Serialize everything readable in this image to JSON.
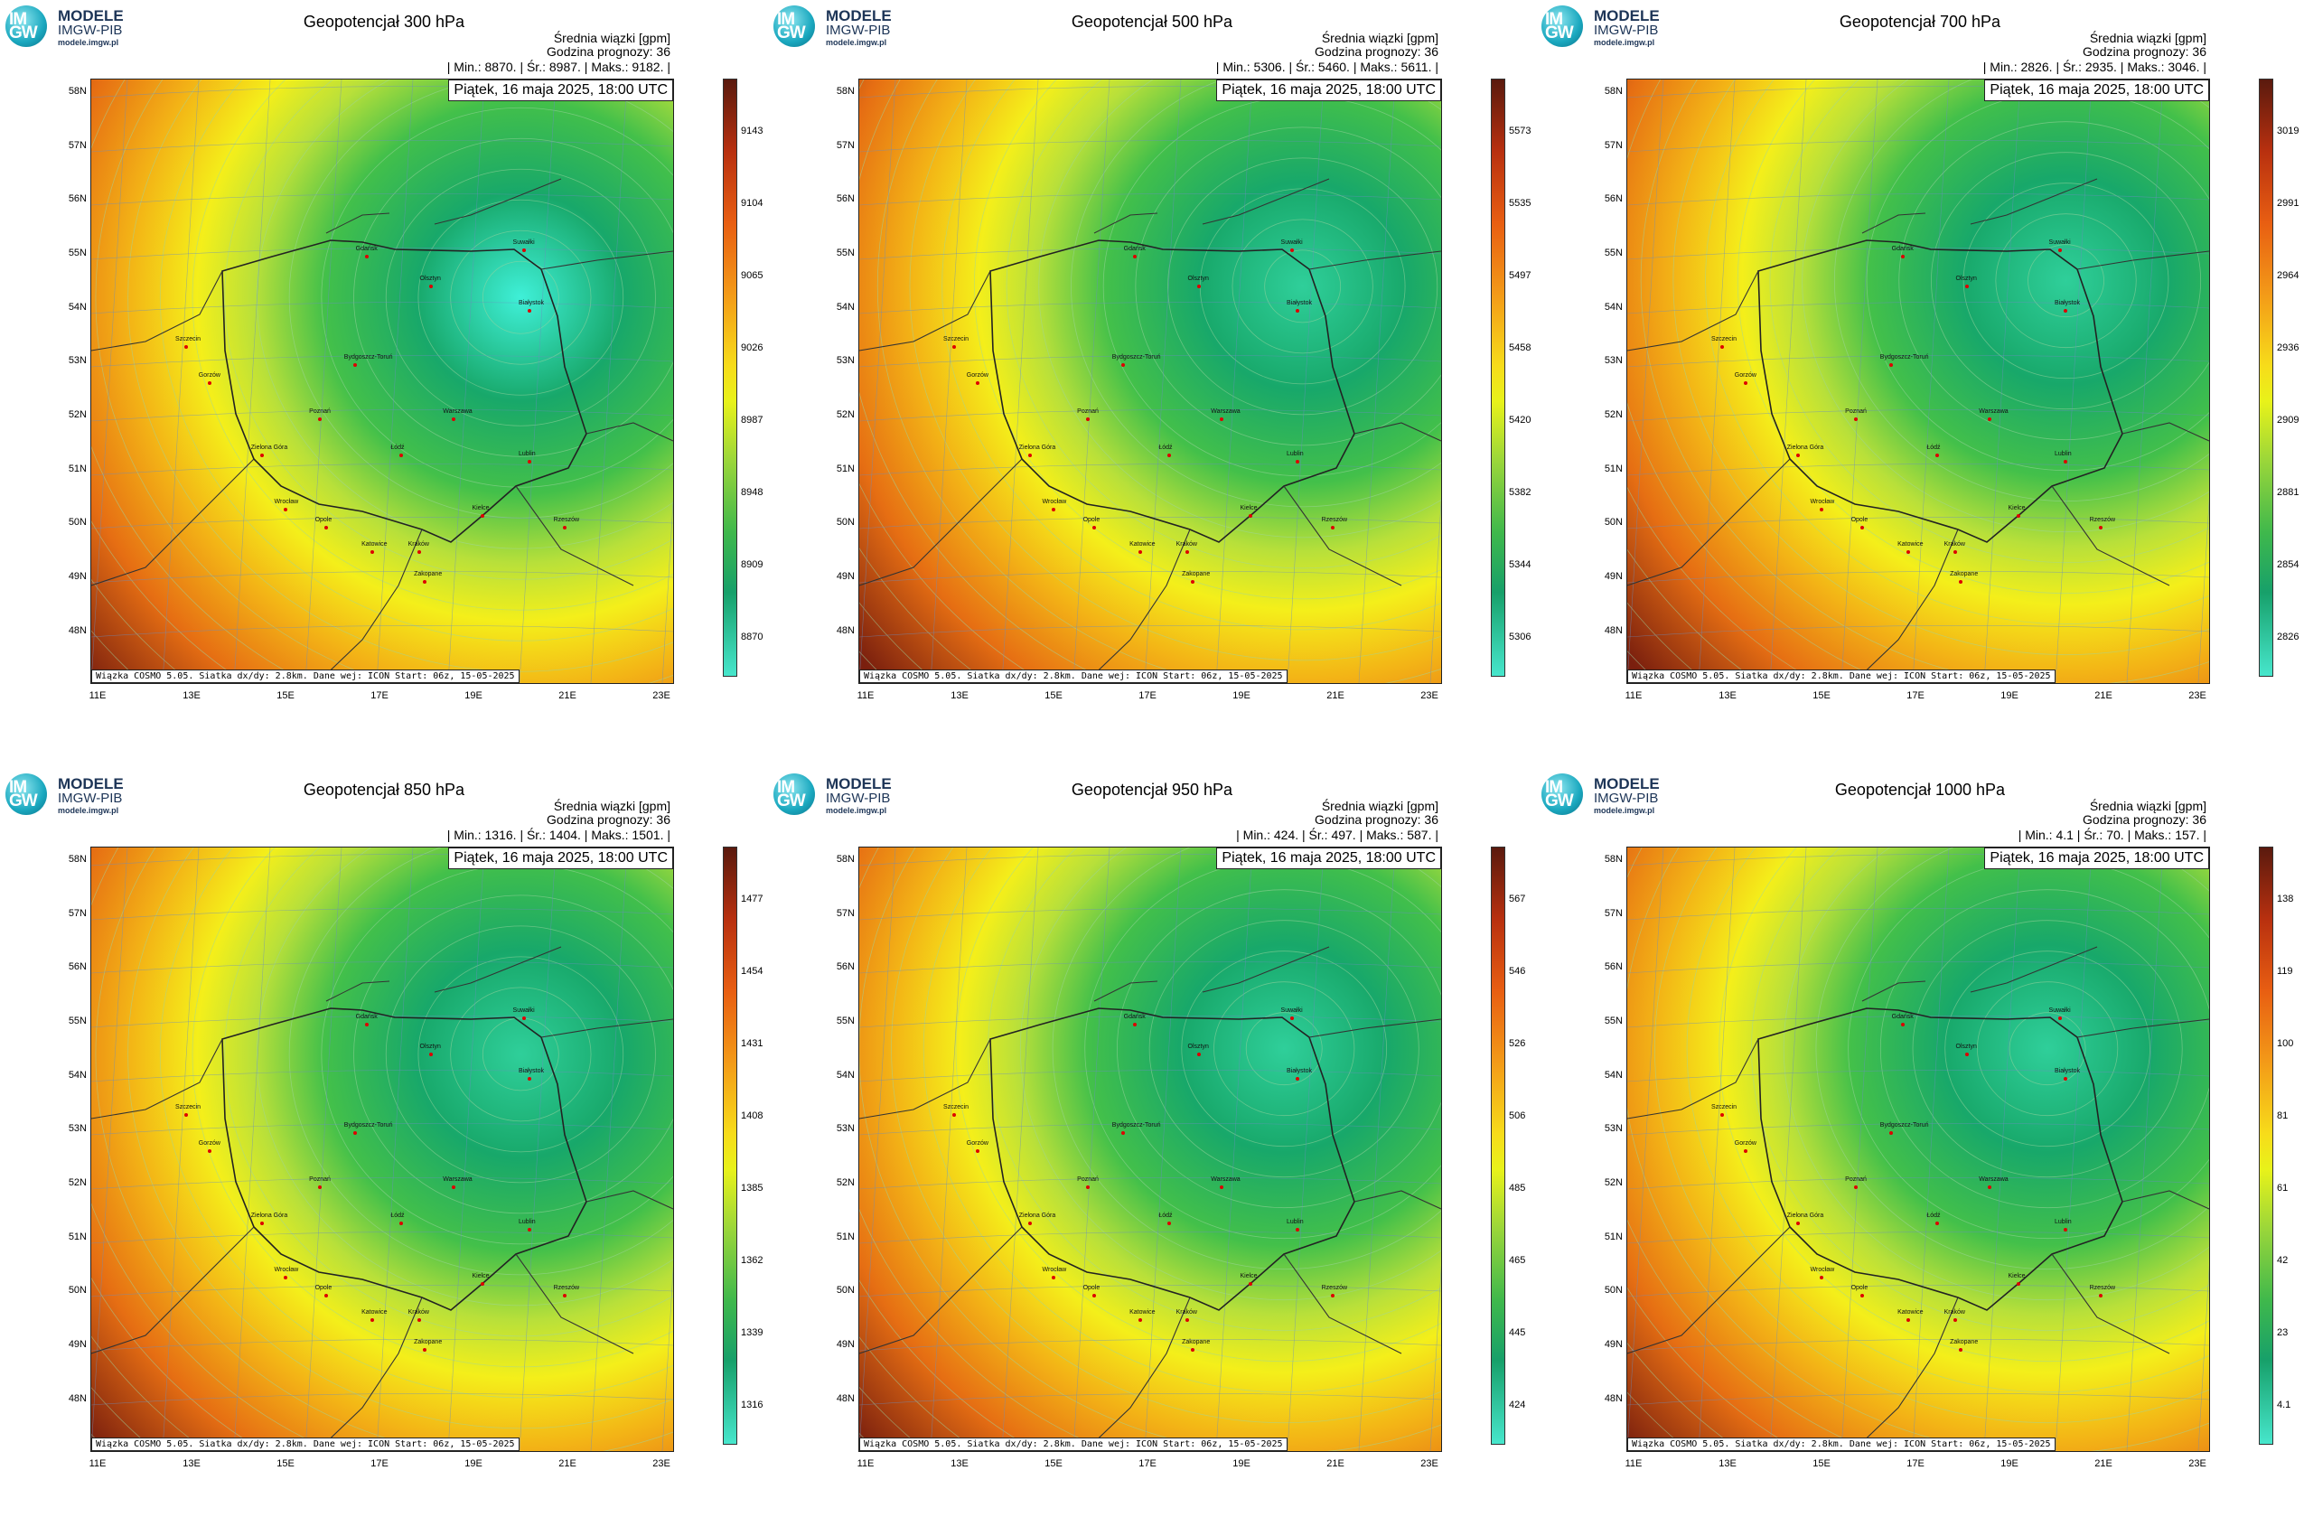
{
  "logo": {
    "badge": "IM GW",
    "title": "MODELE",
    "subtitle": "IMGW-PIB",
    "url": "modele.imgw.pl"
  },
  "common": {
    "info_line1": "Średnia wiązki [gpm]",
    "info_line2": "Godzina prognozy: 36",
    "date": "Piątek, 16 maja 2025, 18:00 UTC",
    "footnote": "Wiązka COSMO 5.05. Siatka dx/dy: 2.8km. Dane wej: ICON Start: 06z, 15-05-2025",
    "lat_labels": [
      "58N",
      "57N",
      "56N",
      "55N",
      "54N",
      "53N",
      "52N",
      "51N",
      "50N",
      "49N",
      "48N"
    ],
    "lon_labels": [
      "11E",
      "13E",
      "15E",
      "17E",
      "19E",
      "21E",
      "23E"
    ],
    "cities": [
      "Gdańsk",
      "Suwałki",
      "Olsztyn",
      "Białystok",
      "Szczecin",
      "Bydgoszcz-Toruń",
      "Gorzów",
      "Warszawa",
      "Poznań",
      "Zielona Góra",
      "Łódź",
      "Lublin",
      "Wrocław",
      "Kielce",
      "Opole",
      "Rzeszów",
      "Katowice",
      "Kraków",
      "Zakopane"
    ]
  },
  "panels": [
    {
      "title": "Geopotencjał 300 hPa",
      "stats": "| Min.:  8870. | Śr.:  8987. | Maks.:  9182. |",
      "colorbar_ticks": [
        "9143",
        "9104",
        "9065",
        "9026",
        "8987",
        "8948",
        "8909",
        "8870"
      ],
      "min": 8870,
      "mean": 8987,
      "max": 9182,
      "low_center": [
        20.3,
        54.3
      ]
    },
    {
      "title": "Geopotencjał 500 hPa",
      "stats": "| Min.:  5306. | Śr.:  5460. | Maks.:  5611. |",
      "colorbar_ticks": [
        "5573",
        "5535",
        "5497",
        "5458",
        "5420",
        "5382",
        "5344",
        "5306"
      ],
      "min": 5306,
      "mean": 5460,
      "max": 5611,
      "low_center": [
        20.6,
        54.5
      ]
    },
    {
      "title": "Geopotencjał 700 hPa",
      "stats": "| Min.:  2826. | Śr.:  2935. | Maks.:  3046. |",
      "colorbar_ticks": [
        "3019",
        "2991",
        "2964",
        "2936",
        "2909",
        "2881",
        "2854",
        "2826"
      ],
      "min": 2826,
      "mean": 2935,
      "max": 3046,
      "low_center": [
        20.5,
        54.6
      ]
    },
    {
      "title": "Geopotencjał 850 hPa",
      "stats": "| Min.:  1316. | Śr.:  1404. | Maks.:  1501. |",
      "colorbar_ticks": [
        "1477",
        "1454",
        "1431",
        "1408",
        "1385",
        "1362",
        "1339",
        "1316"
      ],
      "min": 1316,
      "mean": 1404,
      "max": 1501,
      "low_center": [
        20.3,
        54.5
      ]
    },
    {
      "title": "Geopotencjał 950 hPa",
      "stats": "| Min.:  424. | Śr.:  497. | Maks.:  587. |",
      "colorbar_ticks": [
        "567",
        "546",
        "526",
        "506",
        "485",
        "465",
        "445",
        "424"
      ],
      "min": 424,
      "mean": 497,
      "max": 587,
      "low_center": [
        20.2,
        54.6
      ]
    },
    {
      "title": "Geopotencjał 1000 hPa",
      "stats": "| Min.:  4.1 | Śr.:  70. | Maks.:  157. |",
      "colorbar_ticks": [
        "138",
        "119",
        "100",
        "81",
        "61",
        "42",
        "23",
        "4.1"
      ],
      "min": 4.1,
      "mean": 70,
      "max": 157,
      "low_center": [
        20.1,
        54.6
      ]
    }
  ]
}
